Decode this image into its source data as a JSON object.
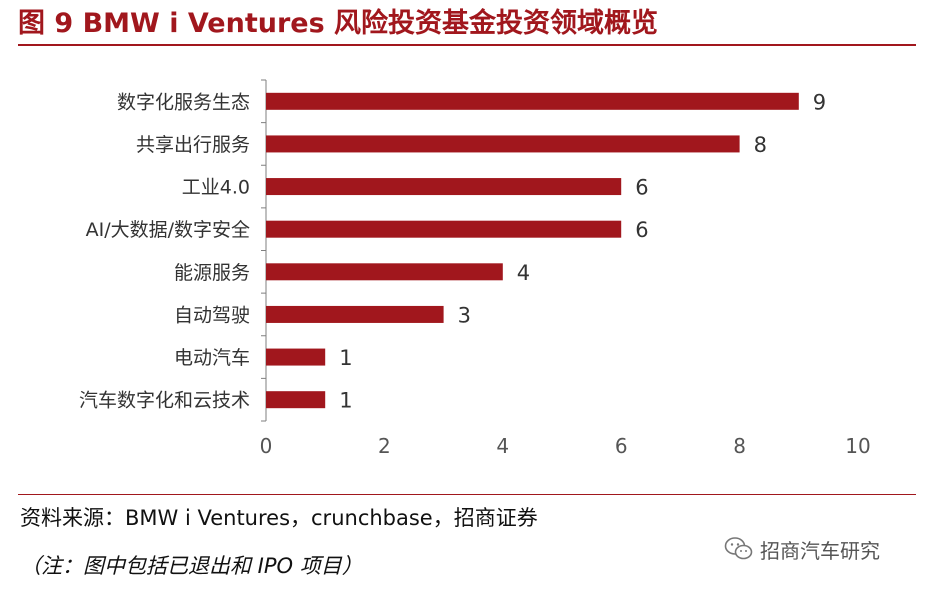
{
  "figure": {
    "title": "图 9 BMW i Ventures 风险投资基金投资领域概览",
    "source": "资料来源：BMW i Ventures，crunchbase，招商证券",
    "note": "（注：图中包括已退出和 IPO 项目）",
    "watermark": "招商汽车研究"
  },
  "colors": {
    "bar": "#a1171d",
    "title": "#a1171d",
    "axis": "#7f7f7f",
    "text": "#333333"
  },
  "chart_data": {
    "type": "bar",
    "orientation": "horizontal",
    "categories": [
      "数字化服务生态",
      "共享出行服务",
      "工业4.0",
      "AI/大数据/数字安全",
      "能源服务",
      "自动驾驶",
      "电动汽车",
      "汽车数字化和云技术"
    ],
    "values": [
      9,
      8,
      6,
      6,
      4,
      3,
      1,
      1
    ],
    "xlim": [
      0,
      10
    ],
    "xticks": [
      0,
      2,
      4,
      6,
      8,
      10
    ],
    "grid": false,
    "legend": "none"
  }
}
